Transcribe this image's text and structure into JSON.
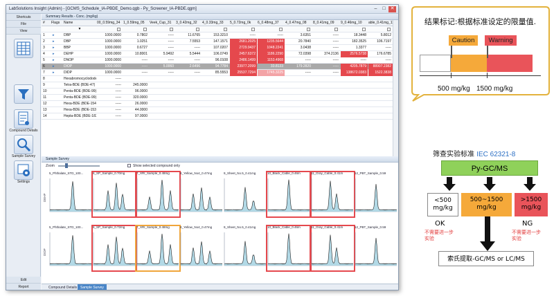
{
  "window": {
    "title": "LabSolutions Insight (Admin) - [GCMS_Schedule_IA-PBDE_Demo.qgb - Py_Screener_IA-PBDE.qgm]",
    "min": "–",
    "max": "□",
    "close": "✕"
  },
  "sidebar": {
    "shortcuts": "Shortcuts",
    "file": "File",
    "view": "View",
    "items": [
      {
        "label": "",
        "icon": "table-icon"
      },
      {
        "label": "",
        "icon": "filter-icon"
      },
      {
        "label": "Compound Details",
        "icon": "compound-details-icon"
      },
      {
        "label": "Sample Survey",
        "icon": "sample-survey-icon"
      },
      {
        "label": "Settings",
        "icon": "settings-icon"
      }
    ],
    "edit": "Edit",
    "report": "Report"
  },
  "summary": {
    "header": "Summary Results - Conc. (mg/kg)",
    "columns": [
      "#",
      "Flags",
      "Name",
      "00_0.59mg_34",
      "1_0.59mg_05",
      "Veek_Cup_31",
      "3_0.42mg_32",
      "4_0.33mg_33",
      "5_0.72mg_0k",
      "6_0.48mg_37",
      "4_0.47mg_08",
      "8_0.41mg_09",
      "9_0.46mg_10",
      "able_0.41mg_11"
    ],
    "rows": [
      {
        "num": "1",
        "name": "DBP",
        "cells": [
          "1000.0000",
          "0.7802",
          "-----",
          "11.6765",
          "153.3210",
          "-----",
          "-----",
          "3.6351",
          "-----",
          "18.3448",
          "5.8012"
        ],
        "hl": [],
        "sel": false
      },
      {
        "num": "2",
        "name": "DBP",
        "cells": [
          "1000.0000",
          "1.0251",
          "-----",
          "7.5553",
          "147.1571",
          "2681.2025",
          "1235.5644",
          "20.7840",
          "-----",
          "182.3525",
          "106.7197"
        ],
        "hl": [
          "",
          "",
          "",
          "",
          "",
          "red",
          "red",
          "",
          "",
          "",
          ""
        ],
        "sel": false
      },
      {
        "num": "3",
        "name": "BBP",
        "cells": [
          "1000.0000",
          "0.6727",
          "-----",
          "-----",
          "107.0207",
          "2729.9437",
          "1048.2241",
          "3.0438",
          "-----",
          "1.3377",
          "-----"
        ],
        "hl": [
          "",
          "",
          "",
          "",
          "",
          "red",
          "red",
          "",
          "",
          "",
          ""
        ],
        "sel": false
      },
      {
        "num": "4",
        "name": "DEHP",
        "cells": [
          "1000.0000",
          "10.8001",
          "5.9492",
          "5.5444",
          "106.0749",
          "2457.6372",
          "1186.2290",
          "72.0398",
          "374.2136",
          "2576.5738",
          "176.6785"
        ],
        "hl": [
          "",
          "",
          "",
          "",
          "",
          "red",
          "red",
          "",
          "",
          "red",
          ""
        ],
        "sel": false
      },
      {
        "num": "5",
        "name": "DNOP",
        "cells": [
          "1000.0000",
          "-----",
          "-----",
          "-----",
          "96.0108",
          "2486.1499",
          "1153.4968",
          "-----",
          "-----",
          "-----",
          "-----"
        ],
        "hl": [
          "",
          "",
          "",
          "",
          "",
          "red",
          "red",
          "",
          "",
          "",
          ""
        ],
        "sel": false
      },
      {
        "num": "6",
        "name": "DIOP",
        "cells": [
          "1000.0000",
          "-----",
          "5.0060",
          "2.6496",
          "94.7784",
          "23977.2099",
          "33.8133",
          "179.2820",
          "-----",
          "4205.7879",
          "88907.2382"
        ],
        "hl": [
          "",
          "",
          "",
          "",
          "",
          "red",
          "",
          "",
          "",
          "red",
          "red"
        ],
        "sel": true
      },
      {
        "num": "7",
        "name": "DIDP",
        "cells": [
          "1000.0000",
          "-----",
          "-----",
          "-----",
          "85.5553",
          "25537.7294",
          "1745.3225",
          "-----",
          "-----",
          "138672.0383",
          "1522.3838"
        ],
        "hl": [
          "",
          "",
          "",
          "",
          "",
          "red",
          "pink",
          "",
          "",
          "red",
          "red"
        ],
        "sel": false
      },
      {
        "num": "8",
        "name": "Hexabromocyclododecane",
        "cells": [
          "-----",
          "",
          "",
          "",
          "",
          "",
          "",
          "",
          "",
          "",
          ""
        ],
        "hl": [],
        "sel": false
      },
      {
        "num": "9",
        "name": "Tetra-BDE (BDE-47)",
        "cells": [
          "-----",
          "245.0000",
          "",
          "",
          "",
          "",
          "",
          "",
          "",
          "",
          ""
        ],
        "hl": [],
        "sel": false
      },
      {
        "num": "10",
        "name": "Penta-BDE (BDE-99)",
        "cells": [
          "-----",
          "96.0000",
          "",
          "",
          "",
          "",
          "",
          "",
          "",
          "",
          ""
        ],
        "hl": [],
        "sel": false
      },
      {
        "num": "11",
        "name": "Penta-BDE (BDE-99)",
        "cells": [
          "-----",
          "320.0000",
          "",
          "",
          "",
          "",
          "",
          "",
          "",
          "",
          ""
        ],
        "hl": [],
        "sel": false
      },
      {
        "num": "12",
        "name": "Hexa-BDE (BDE-154)",
        "cells": [
          "-----",
          "26.0000",
          "",
          "",
          "",
          "",
          "",
          "",
          "",
          "",
          ""
        ],
        "hl": [],
        "sel": false
      },
      {
        "num": "13",
        "name": "Hexa-BDE (BDE-153)",
        "cells": [
          "-----",
          "44.0000",
          "",
          "",
          "",
          "",
          "",
          "",
          "",
          "",
          ""
        ],
        "hl": [],
        "sel": false
      },
      {
        "num": "14",
        "name": "Hepta-BDE (BDE-183)",
        "cells": [
          "-----",
          "97.0000",
          "",
          "",
          "",
          "",
          "",
          "",
          "",
          "",
          ""
        ],
        "hl": [],
        "sel": false
      }
    ]
  },
  "survey": {
    "header": "Sample Survey",
    "zoom_label": "Zoom",
    "show_selected": "Show selected compound only",
    "row_labels": [
      "DEHP",
      "DIDP"
    ],
    "row1": [
      {
        "name": "5_Phthalate_STD_100...",
        "hl": ""
      },
      {
        "name": "6_SP_Sample_0.70mg",
        "hl": "red"
      },
      {
        "name": "7_XRI_Sample_0.48mg",
        "hl": "red"
      },
      {
        "name": "8_Yellow_No4_0.47mg",
        "hl": ""
      },
      {
        "name": "9_Sheet_No.5_0.41mg",
        "hl": ""
      },
      {
        "name": "10_Black_Cable_0.46m",
        "hl": "red"
      },
      {
        "name": "11_Gray_Cable_0.41m",
        "hl": "red"
      },
      {
        "name": "12_PBT_Sample_0.59",
        "hl": ""
      }
    ],
    "row2": [
      {
        "name": "5_Phthalate_STD_100...",
        "hl": ""
      },
      {
        "name": "6_SP_Sample_0.72mg",
        "hl": "red"
      },
      {
        "name": "7_XRI_Sample_0.48mg",
        "hl": "orange"
      },
      {
        "name": "8_Yellow_No4_0.47mg",
        "hl": ""
      },
      {
        "name": "9_Sheet_No.5_0.41mg",
        "hl": ""
      },
      {
        "name": "10_Black_Cable_0.46m",
        "hl": "red"
      },
      {
        "name": "11_Gray_Cable_0.41m",
        "hl": "red"
      },
      {
        "name": "12_PBT_Sample_0.59",
        "hl": ""
      }
    ]
  },
  "tabs": [
    "Compound Details",
    "Sample Survey"
  ],
  "legend": {
    "title": "结果标记:根据标准设定的限量值.",
    "caution": "Caution",
    "warning": "Warning",
    "limit1": "500 mg/kg",
    "limit2": "1500 mg/kg",
    "colors": {
      "caution": "#f5a93a",
      "warning": "#e9545a"
    }
  },
  "flow": {
    "title_prefix": "筛查实验标准",
    "title_std": "IEC 62321-8",
    "method": "Py-GC/MS",
    "low": "<500\nmg/kg",
    "mid": "500~1500\nmg/kg",
    "high": ">1500\nmg/kg",
    "ok": "OK",
    "ng": "NG",
    "no_further_left": "不需要进一步\n实验",
    "no_further_right": "不需要进一步\n实验",
    "extraction": "索氏提取-GC/MS or LC/MS"
  }
}
